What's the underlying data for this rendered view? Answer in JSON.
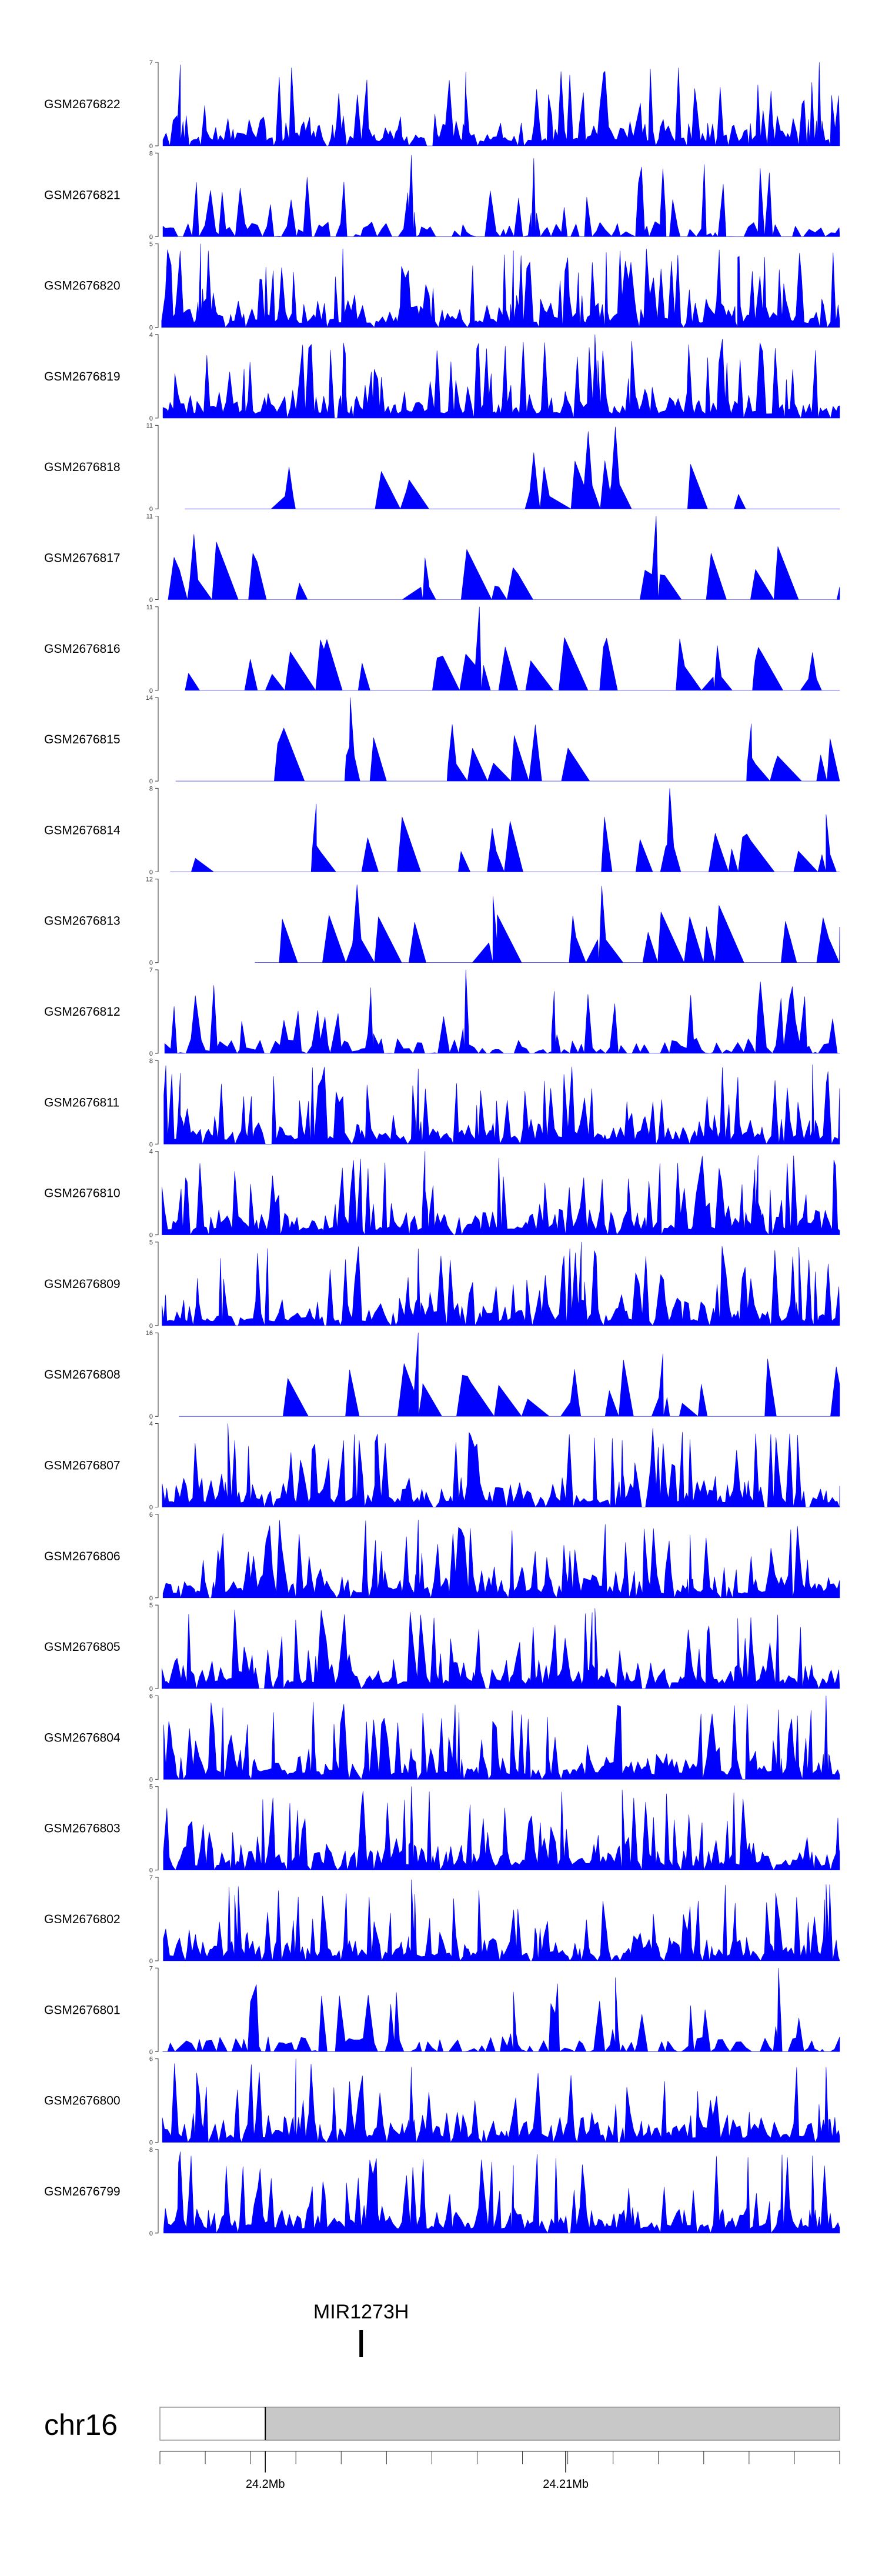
{
  "chart_data": {
    "type": "area",
    "chromosome": "chr16",
    "series_color": "#0000ff",
    "tracks": [
      {
        "name": "GSM2676822",
        "ymax": 7,
        "ymin": 0,
        "seed": 22,
        "style": "dense",
        "peaks": [
          [
            0.03,
            6.8
          ],
          [
            0.45,
            6.2
          ],
          [
            0.97,
            7
          ]
        ]
      },
      {
        "name": "GSM2676821",
        "ymax": 8,
        "ymin": 0,
        "seed": 21,
        "style": "medium",
        "peaks": [
          [
            0.37,
            7.8
          ],
          [
            0.55,
            7.5
          ],
          [
            0.74,
            6.5
          ]
        ]
      },
      {
        "name": "GSM2676820",
        "ymax": 5,
        "ymin": 0,
        "seed": 20,
        "style": "dense",
        "peaks": [
          [
            0.06,
            5
          ],
          [
            0.52,
            4.6
          ],
          [
            0.85,
            4.2
          ]
        ]
      },
      {
        "name": "GSM2676819",
        "ymax": 4,
        "ymin": 0,
        "seed": 19,
        "style": "dense",
        "peaks": [
          [
            0.64,
            4
          ],
          [
            0.27,
            3.6
          ]
        ]
      },
      {
        "name": "GSM2676818",
        "ymax": 11,
        "ymin": 0,
        "seed": 18,
        "style": "sparse",
        "peaks": [
          [
            0.63,
            10.2
          ],
          [
            0.67,
            10.8
          ],
          [
            0.55,
            7.4
          ],
          [
            0.19,
            5.5
          ]
        ]
      },
      {
        "name": "GSM2676817",
        "ymax": 11,
        "ymin": 0,
        "seed": 17,
        "style": "sparse",
        "peaks": [
          [
            0.05,
            8.6
          ],
          [
            0.73,
            11
          ],
          [
            0.39,
            5.5
          ]
        ]
      },
      {
        "name": "GSM2676816",
        "ymax": 11,
        "ymin": 0,
        "seed": 16,
        "style": "sparse",
        "peaks": [
          [
            0.47,
            11
          ],
          [
            0.82,
            5.9
          ],
          [
            0.96,
            5
          ]
        ]
      },
      {
        "name": "GSM2676815",
        "ymax": 14,
        "ymin": 0,
        "seed": 15,
        "style": "sparse",
        "peaks": [
          [
            0.28,
            14
          ],
          [
            0.43,
            9.5
          ],
          [
            0.87,
            9.6
          ]
        ]
      },
      {
        "name": "GSM2676814",
        "ymax": 8,
        "ymin": 0,
        "seed": 14,
        "style": "sparse",
        "peaks": [
          [
            0.75,
            8
          ],
          [
            0.23,
            6.5
          ],
          [
            0.98,
            5.5
          ]
        ]
      },
      {
        "name": "GSM2676813",
        "ymax": 12,
        "ymin": 0,
        "seed": 13,
        "style": "sparse",
        "start": 0.12,
        "peaks": [
          [
            0.29,
            11.2
          ],
          [
            0.65,
            11
          ],
          [
            0.49,
            9.5
          ]
        ]
      },
      {
        "name": "GSM2676812",
        "ymax": 7,
        "ymin": 0,
        "seed": 12,
        "style": "medium",
        "peaks": [
          [
            0.45,
            7
          ],
          [
            0.31,
            5.5
          ],
          [
            0.58,
            5.2
          ]
        ]
      },
      {
        "name": "GSM2676811",
        "ymax": 8,
        "ymin": 0,
        "seed": 11,
        "style": "dense",
        "peaks": [
          [
            0.38,
            7.2
          ],
          [
            0.96,
            7.6
          ],
          [
            0.03,
            6.8
          ]
        ]
      },
      {
        "name": "GSM2676810",
        "ymax": 4,
        "ymin": 0,
        "seed": 10,
        "style": "dense",
        "peaks": [
          [
            0.39,
            4
          ],
          [
            0.88,
            3.8
          ]
        ]
      },
      {
        "name": "GSM2676809",
        "ymax": 5,
        "ymin": 0,
        "seed": 9,
        "style": "dense",
        "peaks": [
          [
            0.38,
            4.6
          ],
          [
            0.62,
            5
          ],
          [
            0.94,
            4.7
          ]
        ]
      },
      {
        "name": "GSM2676808",
        "ymax": 16,
        "ymin": 0,
        "seed": 8,
        "style": "sparse",
        "peaks": [
          [
            0.38,
            16
          ],
          [
            0.74,
            12
          ],
          [
            0.61,
            9
          ]
        ]
      },
      {
        "name": "GSM2676807",
        "ymax": 4,
        "ymin": 0,
        "seed": 7,
        "style": "dense",
        "peaks": [
          [
            0.1,
            4
          ],
          [
            0.32,
            3.5
          ],
          [
            0.68,
            3.2
          ]
        ]
      },
      {
        "name": "GSM2676806",
        "ymax": 6,
        "ymin": 0,
        "seed": 6,
        "style": "dense",
        "peaks": [
          [
            0.38,
            5.6
          ],
          [
            0.78,
            4.5
          ]
        ]
      },
      {
        "name": "GSM2676805",
        "ymax": 5,
        "ymin": 0,
        "seed": 5,
        "style": "dense",
        "peaks": [
          [
            0.64,
            4.8
          ],
          [
            0.85,
            4.2
          ]
        ]
      },
      {
        "name": "GSM2676804",
        "ymax": 6,
        "ymin": 0,
        "seed": 4,
        "style": "dense",
        "peaks": [
          [
            0.98,
            6
          ],
          [
            0.44,
            4.8
          ],
          [
            0.91,
            5
          ]
        ]
      },
      {
        "name": "GSM2676803",
        "ymax": 5,
        "ymin": 0,
        "seed": 3,
        "style": "dense",
        "peaks": [
          [
            0.37,
            5
          ],
          [
            0.68,
            4.8
          ]
        ]
      },
      {
        "name": "GSM2676802",
        "ymax": 7,
        "ymin": 0,
        "seed": 2,
        "style": "dense",
        "peaks": [
          [
            0.37,
            6.8
          ],
          [
            0.98,
            6.4
          ],
          [
            0.11,
            5.5
          ]
        ]
      },
      {
        "name": "GSM2676801",
        "ymax": 7,
        "ymin": 0,
        "seed": 1,
        "style": "medium",
        "peaks": [
          [
            0.91,
            7
          ],
          [
            0.67,
            6.2
          ],
          [
            0.52,
            5
          ]
        ]
      },
      {
        "name": "GSM2676800",
        "ymax": 6,
        "ymin": 0,
        "seed": 50,
        "style": "dense",
        "peaks": [
          [
            0.2,
            6
          ],
          [
            0.37,
            5.4
          ],
          [
            0.98,
            5.4
          ]
        ]
      },
      {
        "name": "GSM2676799",
        "ymax": 8,
        "ymin": 0,
        "seed": 51,
        "style": "dense",
        "peaks": [
          [
            0.03,
            7.8
          ],
          [
            0.52,
            6.5
          ],
          [
            0.96,
            7.4
          ]
        ]
      }
    ],
    "gene": {
      "name": "MIR1273H",
      "position_fraction": 0.296
    },
    "ideogram": {
      "label": "chr16",
      "highlight_start_fraction": 0.155
    },
    "x_axis": {
      "ticks": [
        {
          "label": "24.2Mb",
          "fraction": 0.155
        },
        {
          "label": "24.21Mb",
          "fraction": 0.597
        }
      ],
      "minor_tick_count": 15
    }
  }
}
